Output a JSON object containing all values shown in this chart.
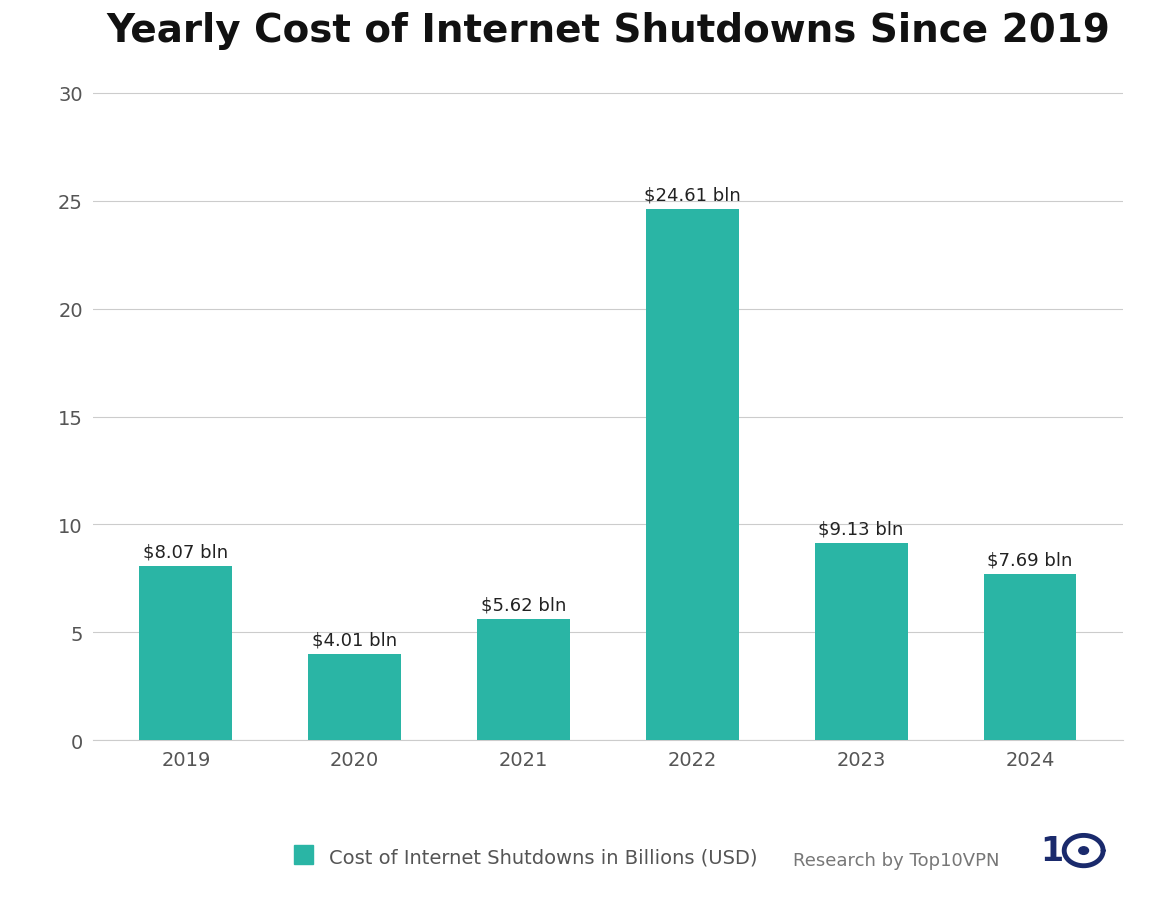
{
  "title": "Yearly Cost of Internet Shutdowns Since 2019",
  "categories": [
    "2019",
    "2020",
    "2021",
    "2022",
    "2023",
    "2024"
  ],
  "values": [
    8.07,
    4.01,
    5.62,
    24.61,
    9.13,
    7.69
  ],
  "labels": [
    "$8.07 bln",
    "$4.01 bln",
    "$5.62 bln",
    "$24.61 bln",
    "$9.13 bln",
    "$7.69 bln"
  ],
  "bar_color": "#2ab5a5",
  "background_color": "#ffffff",
  "title_fontsize": 28,
  "label_fontsize": 13,
  "tick_fontsize": 14,
  "yticks": [
    0,
    5,
    10,
    15,
    20,
    25,
    30
  ],
  "ylim": [
    0,
    31
  ],
  "legend_label": "Cost of Internet Shutdowns in Billions (USD)",
  "legend_color": "#2ab5a5",
  "grid_color": "#cccccc",
  "axis_label_color": "#555555",
  "watermark_text": "Research by Top10VPN",
  "watermark_color": "#777777",
  "logo_color": "#1a2a6c"
}
